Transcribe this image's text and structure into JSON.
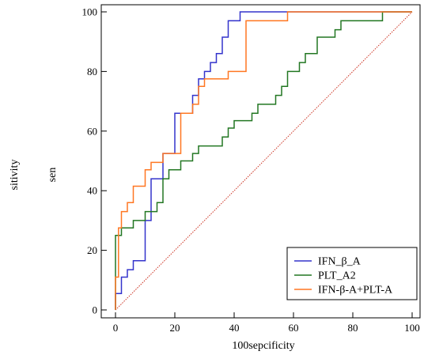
{
  "chart_data": {
    "type": "line",
    "title": "",
    "xlabel": "100sepcificity",
    "ylabel_left": "sitivity",
    "ylabel_right": "sen",
    "xlim": [
      0,
      100
    ],
    "ylim": [
      0,
      100
    ],
    "x_ticks": [
      "0",
      "20",
      "40",
      "60",
      "80",
      "100"
    ],
    "y_ticks": [
      "0",
      "20",
      "40",
      "60",
      "80",
      "100"
    ],
    "grid": false,
    "legend_position": "bottom-right",
    "series": [
      {
        "name": "IFN_β_A",
        "color": "#3333cc",
        "x": [
          0,
          0,
          2,
          2,
          4,
          4,
          6,
          6,
          10,
          10,
          12,
          12,
          16,
          16,
          20,
          20,
          22,
          22,
          26,
          26,
          28,
          28,
          30,
          30,
          32,
          32,
          34,
          34,
          36,
          36,
          38,
          38,
          40,
          40,
          42,
          42,
          48,
          48,
          58,
          58,
          100
        ],
        "y": [
          0,
          5.5,
          5.5,
          11,
          11,
          13.5,
          13.5,
          16.5,
          16.5,
          30,
          30,
          44,
          44,
          52.5,
          52.5,
          66,
          66,
          66,
          66,
          72,
          72,
          77.5,
          77.5,
          80,
          80,
          83,
          83,
          86,
          86,
          91.5,
          91.5,
          97,
          97,
          97,
          97,
          100,
          100,
          100,
          100,
          100,
          100
        ]
      },
      {
        "name": "PLT_A2",
        "color": "#227722",
        "x": [
          0,
          0,
          2,
          2,
          6,
          6,
          10,
          10,
          14,
          14,
          16,
          16,
          18,
          18,
          22,
          22,
          26,
          26,
          28,
          28,
          36,
          36,
          38,
          38,
          40,
          40,
          46,
          46,
          48,
          48,
          54,
          54,
          56,
          56,
          58,
          58,
          62,
          62,
          64,
          64,
          68,
          68,
          74,
          74,
          76,
          76,
          78,
          78,
          90,
          90,
          92,
          92,
          100
        ],
        "y": [
          0,
          25,
          25,
          27.5,
          27.5,
          30,
          30,
          33,
          33,
          36,
          36,
          44,
          44,
          47,
          47,
          50,
          50,
          52.5,
          52.5,
          55,
          55,
          58,
          58,
          61,
          61,
          63.5,
          63.5,
          66,
          66,
          69,
          69,
          72,
          72,
          75,
          75,
          80,
          80,
          83,
          83,
          86,
          86,
          91.5,
          91.5,
          94,
          94,
          97,
          97,
          97,
          97,
          100,
          100,
          100,
          100
        ]
      },
      {
        "name": "IFN-β-A+PLT-A",
        "color": "#ff7722",
        "x": [
          0,
          0,
          1,
          1,
          2,
          2,
          4,
          4,
          6,
          6,
          10,
          10,
          12,
          12,
          14,
          14,
          16,
          16,
          20,
          20,
          22,
          22,
          26,
          26,
          28,
          28,
          30,
          30,
          32,
          32,
          38,
          38,
          40,
          40,
          44,
          44,
          46,
          46,
          58,
          58,
          100
        ],
        "y": [
          0,
          11,
          11,
          27.5,
          27.5,
          33,
          33,
          36,
          36,
          41.5,
          41.5,
          47,
          47,
          49.5,
          49.5,
          49.5,
          49.5,
          52.5,
          52.5,
          52.5,
          52.5,
          66,
          66,
          69,
          69,
          75,
          75,
          77.5,
          77.5,
          77.5,
          77.5,
          80,
          80,
          80,
          80,
          97,
          97,
          97,
          97,
          100,
          100
        ]
      }
    ],
    "reference_line": {
      "x": [
        0,
        100
      ],
      "y": [
        0,
        100
      ],
      "color": "#cc3322"
    }
  }
}
